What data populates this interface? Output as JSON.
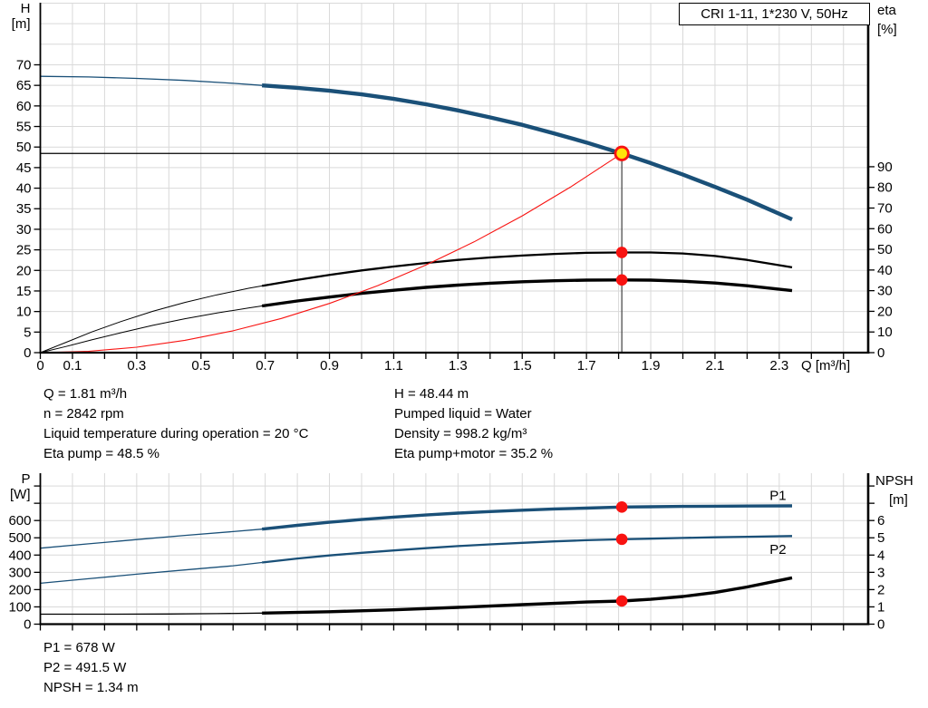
{
  "title_box": "CRI 1-11, 1*230 V, 50Hz",
  "colors": {
    "blue": "#1a5078",
    "red": "#f81311",
    "yellow": "#ffe409",
    "grid": "#d9d9d9",
    "vline": "#3f3f3f",
    "axis": "#000000"
  },
  "info_top_left": [
    "Q = 1.81 m³/h",
    "n = 2842 rpm",
    "Liquid temperature during operation = 20 °C",
    "Eta pump = 48.5 %"
  ],
  "info_top_right": [
    "H = 48.44 m",
    "Pumped liquid = Water",
    "Density = 998.2 kg/m³",
    "Eta pump+motor = 35.2 %"
  ],
  "info_bottom": [
    "P1 = 678 W",
    "P2 = 491.5 W",
    "NPSH = 1.34 m"
  ],
  "operating_point": {
    "Q_m3h": 1.81,
    "H_m": 48.44,
    "n_rpm": 2842,
    "eta_pump_pct": 48.5,
    "eta_pump_motor_pct": 35.2,
    "P1_W": 678,
    "P2_W": 491.5,
    "NPSH_m": 1.34
  },
  "chart_data": [
    {
      "name": "performance-chart",
      "type": "line",
      "title": "CRI 1-11, 1*230 V, 50Hz",
      "x_axis": {
        "label": "Q [m³/h]",
        "min": 0,
        "max": 2.581,
        "tick_step": 0.1,
        "last_tick": 2.5,
        "labeled_ticks": [
          "0",
          "0.1",
          "0.3",
          "0.5",
          "0.7",
          "0.9",
          "1.1",
          "1.3",
          "1.5",
          "1.7",
          "1.9",
          "2.1",
          "2.3"
        ]
      },
      "left_axis": {
        "title": "H",
        "unit": "[m]",
        "min": 0,
        "max": 85.1,
        "grid_step": 5,
        "grid_max": 85,
        "labeled_ticks": [
          0,
          5,
          10,
          15,
          20,
          25,
          30,
          35,
          40,
          45,
          50,
          55,
          60,
          65,
          70
        ],
        "extra_ticks": []
      },
      "right_axis": {
        "title": "eta",
        "unit": "[%]",
        "min": 0,
        "max": 169.4,
        "labeled_ticks": [
          0,
          10,
          20,
          30,
          40,
          50,
          60,
          70,
          80,
          90
        ],
        "extra_ticks": []
      },
      "series": [
        {
          "name": "head-curve-out-of-range",
          "axis": "left",
          "color": "blue",
          "width": 1.3,
          "points": [
            [
              0,
              67.2
            ],
            [
              0.15,
              67.05
            ],
            [
              0.3,
              66.7
            ],
            [
              0.45,
              66.2
            ],
            [
              0.6,
              65.5
            ],
            [
              0.69,
              65.0
            ]
          ]
        },
        {
          "name": "head-curve",
          "axis": "left",
          "color": "blue",
          "width": 4.4,
          "points": [
            [
              0.69,
              65.0
            ],
            [
              0.8,
              64.4
            ],
            [
              0.9,
              63.7
            ],
            [
              1.0,
              62.8
            ],
            [
              1.1,
              61.7
            ],
            [
              1.2,
              60.4
            ],
            [
              1.3,
              58.9
            ],
            [
              1.4,
              57.2
            ],
            [
              1.5,
              55.4
            ],
            [
              1.6,
              53.3
            ],
            [
              1.7,
              51.1
            ],
            [
              1.81,
              48.44
            ],
            [
              1.9,
              46.1
            ],
            [
              2.0,
              43.3
            ],
            [
              2.1,
              40.3
            ],
            [
              2.2,
              37.2
            ],
            [
              2.34,
              32.4
            ]
          ]
        },
        {
          "name": "eta-pump-curve-out-of-range",
          "axis": "right",
          "color": "axis",
          "width": 1,
          "points": [
            [
              0,
              0
            ],
            [
              0.08,
              5
            ],
            [
              0.16,
              10
            ],
            [
              0.25,
              15
            ],
            [
              0.35,
              20
            ],
            [
              0.45,
              24.3
            ],
            [
              0.55,
              28
            ],
            [
              0.65,
              31.2
            ],
            [
              0.69,
              32.3
            ]
          ]
        },
        {
          "name": "eta-pump-curve",
          "axis": "right",
          "color": "axis",
          "width": 2.3,
          "points": [
            [
              0.69,
              32.3
            ],
            [
              0.8,
              35.2
            ],
            [
              0.9,
              37.6
            ],
            [
              1.0,
              39.8
            ],
            [
              1.1,
              41.7
            ],
            [
              1.2,
              43.4
            ],
            [
              1.3,
              44.9
            ],
            [
              1.4,
              46.1
            ],
            [
              1.5,
              47.0
            ],
            [
              1.6,
              47.8
            ],
            [
              1.7,
              48.3
            ],
            [
              1.81,
              48.5
            ],
            [
              1.9,
              48.5
            ],
            [
              2.0,
              48.0
            ],
            [
              2.1,
              46.8
            ],
            [
              2.2,
              44.9
            ],
            [
              2.34,
              41.3
            ]
          ]
        },
        {
          "name": "eta-pump-motor-curve-out-of-range",
          "axis": "right",
          "color": "axis",
          "width": 1,
          "points": [
            [
              0,
              0
            ],
            [
              0.08,
              3
            ],
            [
              0.16,
              6.2
            ],
            [
              0.25,
              9.6
            ],
            [
              0.35,
              13.2
            ],
            [
              0.45,
              16.4
            ],
            [
              0.55,
              19.2
            ],
            [
              0.65,
              21.7
            ],
            [
              0.69,
              22.6
            ]
          ]
        },
        {
          "name": "eta-pump-motor-curve",
          "axis": "right",
          "color": "axis",
          "width": 3.4,
          "points": [
            [
              0.69,
              22.6
            ],
            [
              0.8,
              25.0
            ],
            [
              0.9,
              26.9
            ],
            [
              1.0,
              28.7
            ],
            [
              1.1,
              30.2
            ],
            [
              1.2,
              31.6
            ],
            [
              1.3,
              32.7
            ],
            [
              1.4,
              33.6
            ],
            [
              1.5,
              34.3
            ],
            [
              1.6,
              34.8
            ],
            [
              1.7,
              35.1
            ],
            [
              1.81,
              35.2
            ],
            [
              1.9,
              35.1
            ],
            [
              2.0,
              34.6
            ],
            [
              2.1,
              33.7
            ],
            [
              2.2,
              32.4
            ],
            [
              2.34,
              30.0
            ]
          ]
        },
        {
          "name": "system-curve",
          "axis": "left",
          "color": "red",
          "width": 1.1,
          "points": [
            [
              0,
              0
            ],
            [
              0.15,
              0.33
            ],
            [
              0.3,
              1.33
            ],
            [
              0.45,
              3.0
            ],
            [
              0.6,
              5.32
            ],
            [
              0.75,
              8.32
            ],
            [
              0.9,
              11.97
            ],
            [
              1.05,
              16.3
            ],
            [
              1.2,
              21.29
            ],
            [
              1.35,
              26.94
            ],
            [
              1.5,
              33.27
            ],
            [
              1.65,
              40.25
            ],
            [
              1.81,
              48.44
            ]
          ]
        }
      ],
      "ref_lines": [
        {
          "type": "h",
          "value": 48.44,
          "x_from": 0,
          "x_to": 1.81
        },
        {
          "type": "v",
          "x": 1.81,
          "v_from": 0,
          "v_to": 48.44
        }
      ],
      "markers": [
        {
          "name": "duty-point-marker",
          "style": "duty",
          "x": 1.81,
          "axis": "left",
          "value": 48.44
        },
        {
          "name": "eta-pump-marker",
          "style": "dot",
          "x": 1.81,
          "axis": "right",
          "value": 48.5
        },
        {
          "name": "eta-pump-motor-marker",
          "style": "dot",
          "x": 1.81,
          "axis": "right",
          "value": 35.2
        }
      ],
      "labels": []
    },
    {
      "name": "power-npsh-chart",
      "type": "line",
      "x_axis": {
        "label": "",
        "min": 0,
        "max": 2.581,
        "tick_step": 0.1,
        "last_tick": 2.5,
        "labeled_ticks": []
      },
      "left_axis": {
        "title": "P",
        "unit": "[W]",
        "min": 0,
        "max": 874,
        "grid_step": 100,
        "grid_max": 800,
        "labeled_ticks": [
          0,
          100,
          200,
          300,
          400,
          500,
          600
        ],
        "extra_ticks": [
          700,
          800
        ]
      },
      "right_axis": {
        "title": "NPSH",
        "unit": "[m]",
        "min": 0,
        "max": 8.74,
        "labeled_ticks": [
          0,
          1,
          2,
          3,
          4,
          5,
          6
        ],
        "extra_ticks": [
          7,
          8
        ]
      },
      "series": [
        {
          "name": "p1-curve-out-of-range",
          "axis": "left",
          "color": "blue",
          "width": 1.3,
          "points": [
            [
              0,
              440
            ],
            [
              0.15,
              465
            ],
            [
              0.3,
              490
            ],
            [
              0.45,
              514
            ],
            [
              0.6,
              536
            ],
            [
              0.69,
              550
            ]
          ]
        },
        {
          "name": "p1-curve",
          "axis": "left",
          "color": "blue",
          "width": 3.4,
          "points": [
            [
              0.69,
              550
            ],
            [
              0.8,
              572
            ],
            [
              0.9,
              590
            ],
            [
              1.0,
              606
            ],
            [
              1.1,
              620
            ],
            [
              1.2,
              632
            ],
            [
              1.3,
              643
            ],
            [
              1.4,
              652
            ],
            [
              1.5,
              660
            ],
            [
              1.6,
              667
            ],
            [
              1.7,
              672
            ],
            [
              1.81,
              678
            ],
            [
              1.9,
              680
            ],
            [
              2.0,
              682
            ],
            [
              2.1,
              683
            ],
            [
              2.2,
              684
            ],
            [
              2.34,
              685
            ]
          ]
        },
        {
          "name": "p2-curve-out-of-range",
          "axis": "left",
          "color": "blue",
          "width": 1.3,
          "points": [
            [
              0,
              237
            ],
            [
              0.15,
              263
            ],
            [
              0.3,
              289
            ],
            [
              0.45,
              314
            ],
            [
              0.6,
              338
            ],
            [
              0.69,
              357
            ]
          ]
        },
        {
          "name": "p2-curve",
          "axis": "left",
          "color": "blue",
          "width": 2.3,
          "points": [
            [
              0.69,
              357
            ],
            [
              0.8,
              380
            ],
            [
              0.9,
              398
            ],
            [
              1.0,
              413
            ],
            [
              1.1,
              427
            ],
            [
              1.2,
              440
            ],
            [
              1.3,
              452
            ],
            [
              1.4,
              462
            ],
            [
              1.5,
              471
            ],
            [
              1.6,
              479
            ],
            [
              1.7,
              486
            ],
            [
              1.81,
              491.5
            ],
            [
              1.9,
              495
            ],
            [
              2.0,
              499
            ],
            [
              2.1,
              503
            ],
            [
              2.2,
              506
            ],
            [
              2.34,
              510
            ]
          ]
        },
        {
          "name": "npsh-curve-out-of-range",
          "axis": "right",
          "color": "axis",
          "width": 1.3,
          "points": [
            [
              0,
              0.58
            ],
            [
              0.2,
              0.58
            ],
            [
              0.4,
              0.59
            ],
            [
              0.55,
              0.61
            ],
            [
              0.69,
              0.64
            ]
          ]
        },
        {
          "name": "npsh-curve",
          "axis": "right",
          "color": "axis",
          "width": 3.4,
          "points": [
            [
              0.69,
              0.64
            ],
            [
              0.9,
              0.72
            ],
            [
              1.1,
              0.83
            ],
            [
              1.3,
              0.97
            ],
            [
              1.5,
              1.13
            ],
            [
              1.7,
              1.28
            ],
            [
              1.81,
              1.34
            ],
            [
              1.9,
              1.44
            ],
            [
              2.0,
              1.6
            ],
            [
              2.1,
              1.83
            ],
            [
              2.2,
              2.15
            ],
            [
              2.34,
              2.68
            ]
          ]
        }
      ],
      "ref_lines": [],
      "markers": [
        {
          "name": "p1-marker",
          "style": "dot",
          "x": 1.81,
          "axis": "left",
          "value": 678
        },
        {
          "name": "p2-marker",
          "style": "dot",
          "x": 1.81,
          "axis": "left",
          "value": 491.5
        },
        {
          "name": "npsh-marker",
          "style": "dot",
          "x": 1.81,
          "axis": "right",
          "value": 1.34
        }
      ],
      "labels": [
        {
          "text": "P1",
          "x": 2.27,
          "axis": "left",
          "value": 720
        },
        {
          "text": "P2",
          "x": 2.27,
          "axis": "left",
          "value": 407
        }
      ]
    }
  ]
}
